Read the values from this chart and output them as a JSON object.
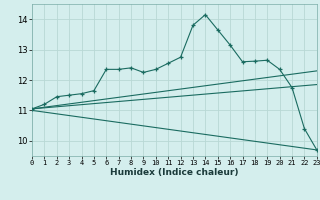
{
  "xlabel": "Humidex (Indice chaleur)",
  "background_color": "#d4eeed",
  "grid_color": "#b8d8d5",
  "line_color": "#1a6b60",
  "xlim": [
    0,
    23
  ],
  "ylim": [
    9.5,
    14.5
  ],
  "yticks": [
    10,
    11,
    12,
    13,
    14
  ],
  "xticks": [
    0,
    1,
    2,
    3,
    4,
    5,
    6,
    7,
    8,
    9,
    10,
    11,
    12,
    13,
    14,
    15,
    16,
    17,
    18,
    19,
    20,
    21,
    22,
    23
  ],
  "main_x": [
    0,
    1,
    2,
    3,
    4,
    5,
    6,
    7,
    8,
    9,
    10,
    11,
    12,
    13,
    14,
    15,
    16,
    17,
    18,
    19,
    20,
    21,
    22,
    23
  ],
  "main_y": [
    11.05,
    11.2,
    11.45,
    11.5,
    11.55,
    11.65,
    12.35,
    12.35,
    12.4,
    12.25,
    12.35,
    12.55,
    12.75,
    13.8,
    14.15,
    13.65,
    13.15,
    12.6,
    12.62,
    12.65,
    12.35,
    11.75,
    10.4,
    9.7
  ],
  "line2_x": [
    0,
    23
  ],
  "line2_y": [
    11.05,
    12.3
  ],
  "line3_x": [
    0,
    23
  ],
  "line3_y": [
    11.05,
    11.85
  ],
  "line4_x": [
    0,
    23
  ],
  "line4_y": [
    11.0,
    9.7
  ]
}
